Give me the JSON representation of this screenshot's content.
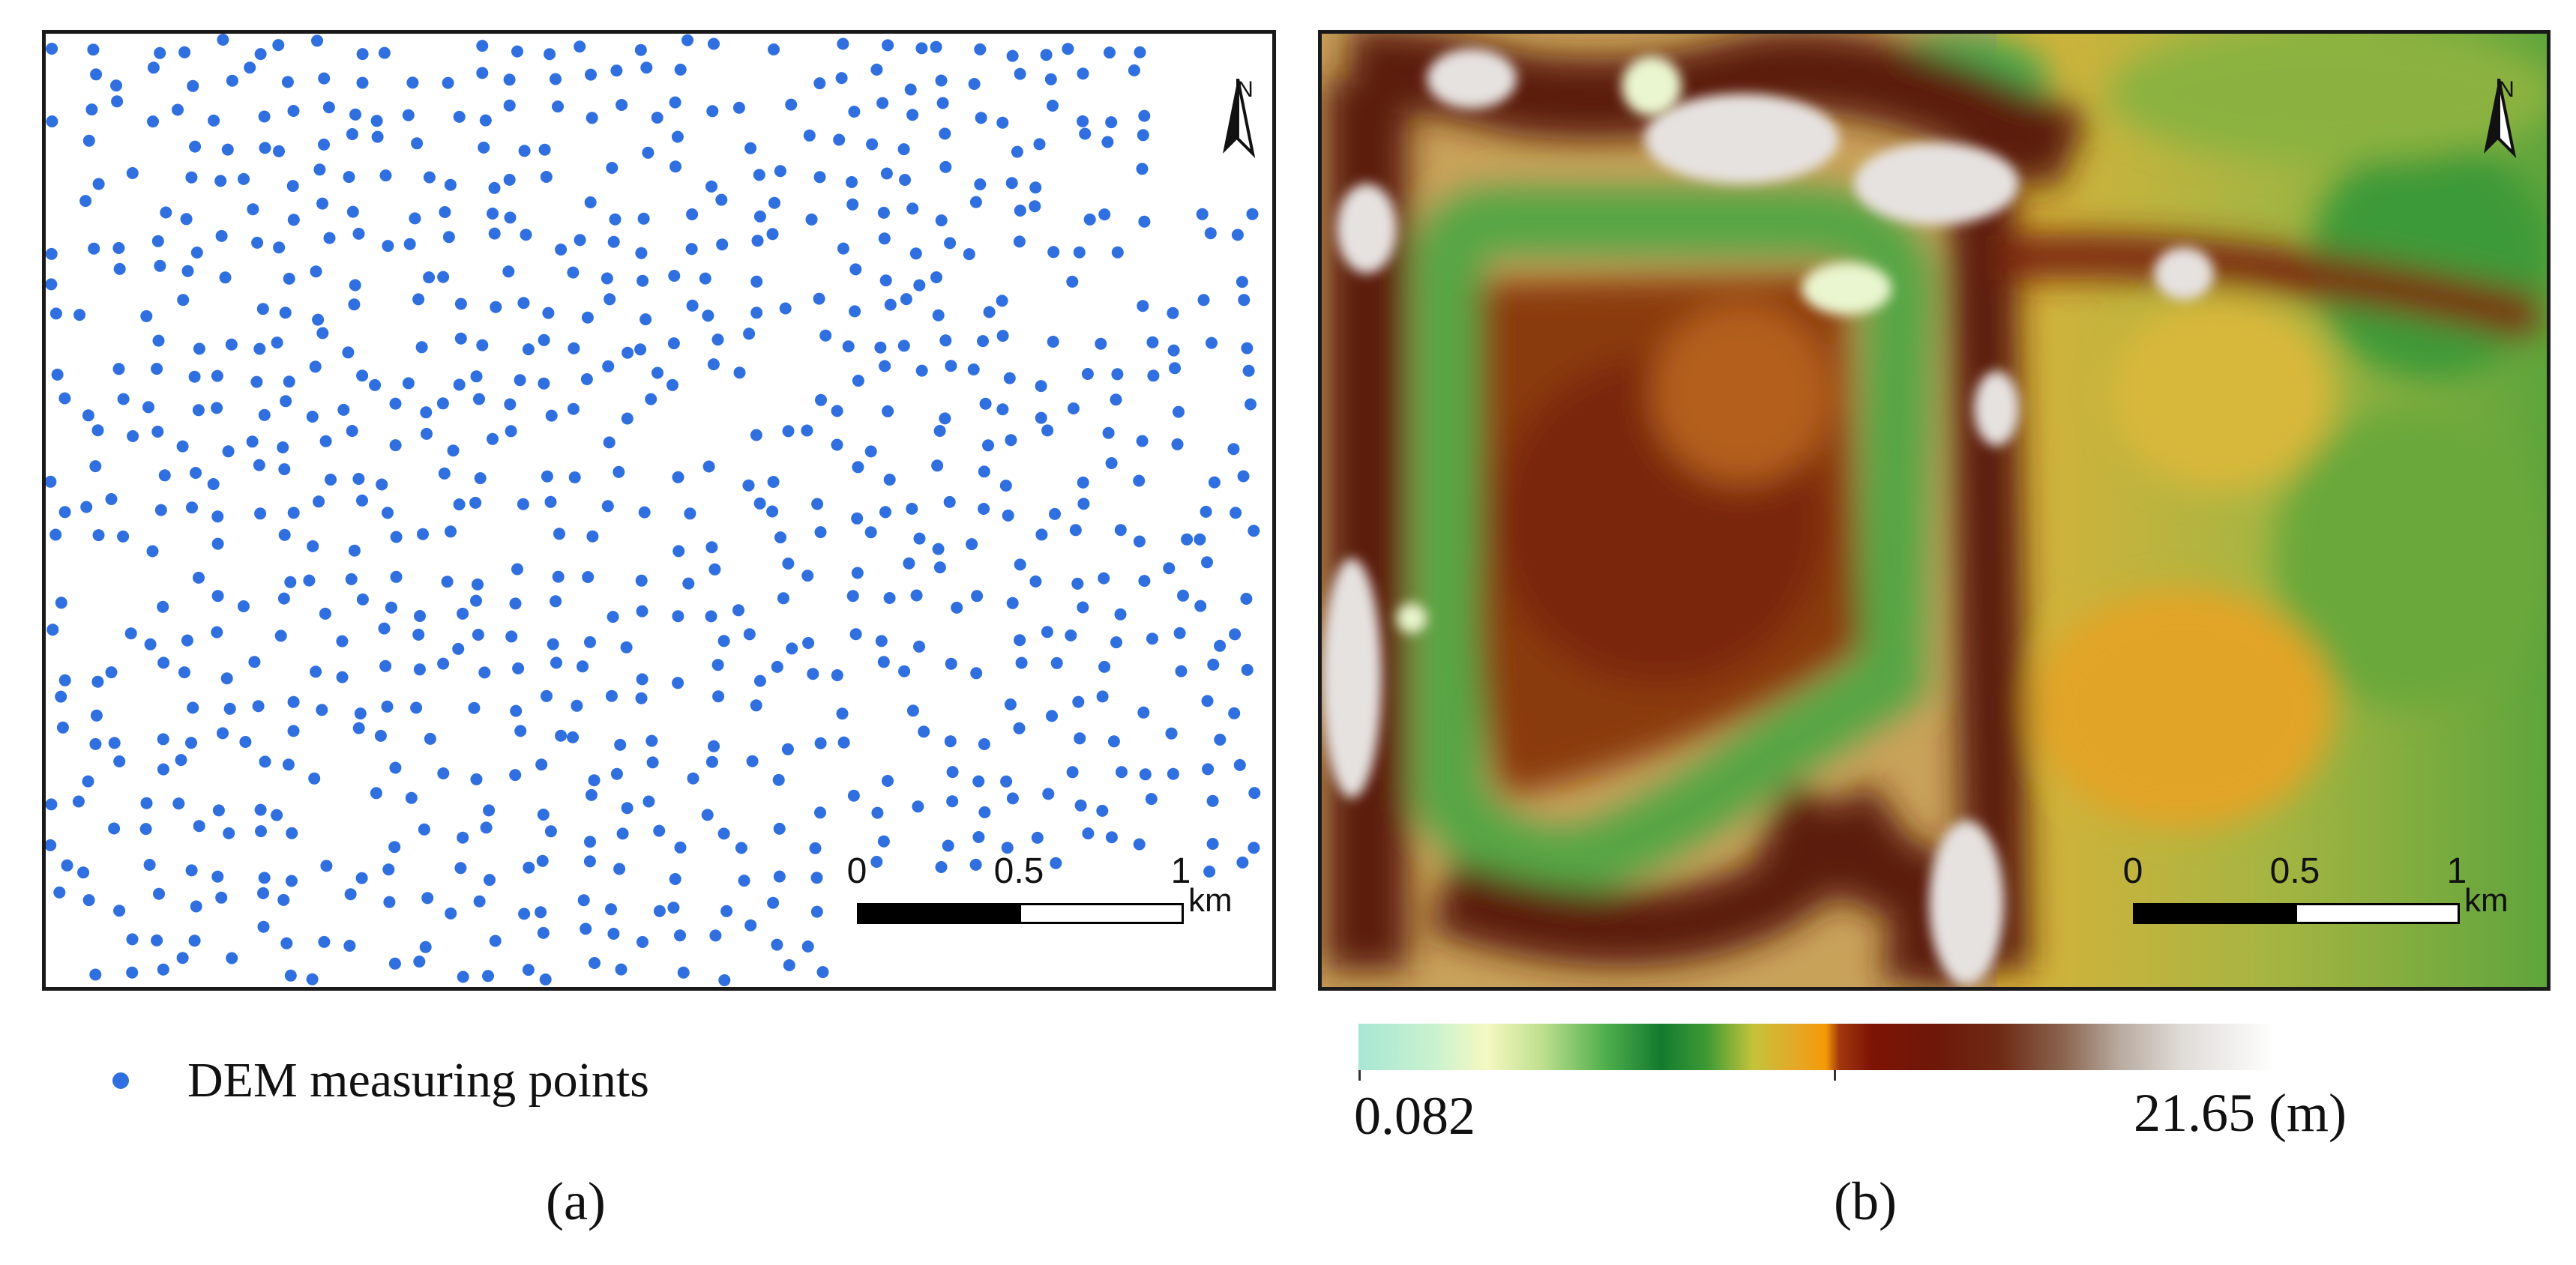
{
  "panel_a": {
    "north_label": "N",
    "legend_label": "DEM measuring points",
    "point_color": "#2f6fe0",
    "caption": "(a)",
    "scale": {
      "ticks": [
        "0",
        "0.5",
        "1"
      ],
      "unit": "km"
    }
  },
  "panel_b": {
    "north_label": "N",
    "caption": "(b)",
    "scale": {
      "ticks": [
        "0",
        "0.5",
        "1"
      ],
      "unit": "km"
    },
    "colorbar": {
      "min_label": "0.082",
      "max_label": "21.65 (m)",
      "min_value": 0.082,
      "max_value": 21.65,
      "colors": [
        "#a8e6d4",
        "#f5f8c2",
        "#4fae4c",
        "#137a2e",
        "#c3c33a",
        "#f39a06",
        "#7d1404",
        "#6e2a14",
        "#b8aa9f",
        "#ffffff"
      ]
    }
  }
}
